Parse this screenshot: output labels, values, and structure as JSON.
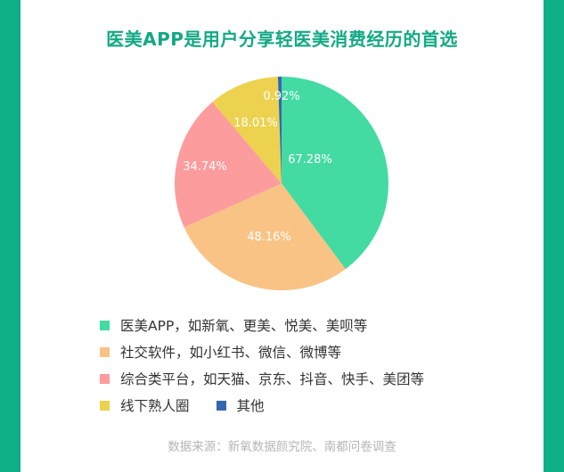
{
  "title": "医美APP是用户分享轻医美消费经历的首选",
  "source": "数据来源：新氧数据颜究院、南都问卷调查",
  "colors": {
    "frame": "#0eae86",
    "title": "#12a984"
  },
  "legend": [
    {
      "label": "医美APP，如新氧、更美、悦美、美呗等",
      "color": "#43dba2"
    },
    {
      "label": "社交软件，如小红书、微信、微博等",
      "color": "#f9c385"
    },
    {
      "label": "综合类平台，如天猫、京东、抖音、快手、美团等",
      "color": "#fd9c9c"
    },
    {
      "label": "线下熟人圈",
      "color": "#ecd24f"
    },
    {
      "label": "其他",
      "color": "#3466b4"
    }
  ],
  "chart_data": {
    "type": "pie",
    "title": "医美APP是用户分享轻医美消费经历的首选",
    "categories": [
      "医美APP，如新氧、更美、悦美、美呗等",
      "社交软件，如小红书、微信、微博等",
      "综合类平台，如天猫、京东、抖音、快手、美团等",
      "线下熟人圈",
      "其他"
    ],
    "values": [
      67.28,
      48.16,
      34.74,
      18.01,
      0.92
    ],
    "labels": [
      "67.28%",
      "48.16%",
      "34.74%",
      "18.01%",
      "0.92%"
    ],
    "colors": [
      "#43dba2",
      "#f9c385",
      "#fd9c9c",
      "#ecd24f",
      "#3466b4"
    ],
    "legend_position": "bottom",
    "note": "Multiple-choice survey; percentages sum over 100%, slices drawn proportionally"
  }
}
